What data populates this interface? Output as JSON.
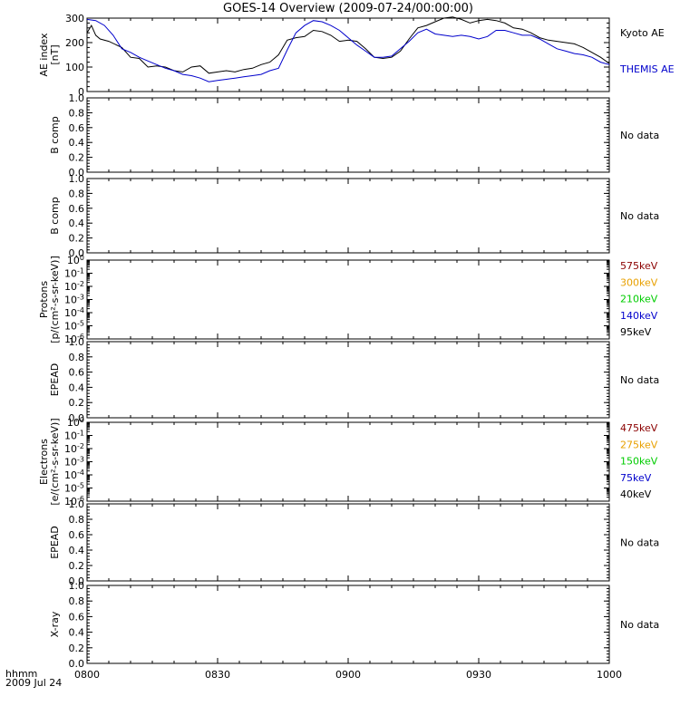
{
  "title": "GOES-14 Overview (2009-07-24/00:00:00)",
  "x_axis": {
    "label_line1": "hhmm",
    "label_line2": "2009 Jul 24",
    "ticks": [
      "0800",
      "0830",
      "0900",
      "0930",
      "1000"
    ]
  },
  "chart_data": [
    {
      "type": "line",
      "panel": "ae-index",
      "ylabel_line1": "AE index",
      "ylabel_line2": "[nT]",
      "ylim": [
        0,
        300
      ],
      "yticks": [
        "0",
        "100",
        "200",
        "300"
      ],
      "x_unit": "minutes after 08:00 UT",
      "series": [
        {
          "name": "Kyoto AE",
          "color": "#000000",
          "x": [
            0,
            1,
            2,
            3,
            5,
            8,
            10,
            12,
            14,
            16,
            18,
            20,
            22,
            24,
            26,
            28,
            30,
            32,
            34,
            36,
            38,
            40,
            42,
            44,
            46,
            48,
            50,
            52,
            54,
            56,
            58,
            60,
            62,
            64,
            66,
            68,
            70,
            72,
            74,
            76,
            78,
            80,
            82,
            84,
            86,
            88,
            90,
            92,
            94,
            96,
            98,
            100,
            102,
            104,
            106,
            108,
            110,
            112,
            114,
            116,
            118,
            120
          ],
          "values": [
            240,
            270,
            230,
            215,
            205,
            180,
            140,
            135,
            100,
            105,
            100,
            85,
            80,
            100,
            105,
            75,
            80,
            85,
            80,
            90,
            95,
            110,
            120,
            150,
            210,
            220,
            225,
            250,
            245,
            230,
            205,
            210,
            205,
            175,
            140,
            135,
            140,
            165,
            215,
            260,
            270,
            285,
            300,
            305,
            295,
            280,
            290,
            295,
            290,
            280,
            260,
            255,
            240,
            220,
            210,
            205,
            200,
            195,
            180,
            160,
            140,
            115
          ]
        },
        {
          "name": "THEMIS AE",
          "color": "#0000cc",
          "x": [
            0,
            2,
            4,
            6,
            8,
            10,
            12,
            14,
            16,
            18,
            20,
            22,
            24,
            26,
            28,
            30,
            32,
            34,
            36,
            38,
            40,
            42,
            44,
            46,
            48,
            50,
            52,
            54,
            56,
            58,
            60,
            62,
            64,
            66,
            68,
            70,
            72,
            74,
            76,
            78,
            80,
            82,
            84,
            86,
            88,
            90,
            92,
            94,
            96,
            98,
            100,
            102,
            104,
            106,
            108,
            110,
            112,
            114,
            116,
            118,
            120
          ],
          "values": [
            295,
            290,
            270,
            230,
            175,
            160,
            140,
            125,
            110,
            95,
            85,
            70,
            65,
            55,
            40,
            45,
            50,
            55,
            60,
            65,
            70,
            85,
            95,
            170,
            240,
            270,
            290,
            285,
            270,
            250,
            220,
            190,
            165,
            140,
            140,
            145,
            175,
            205,
            240,
            255,
            235,
            230,
            225,
            230,
            225,
            215,
            225,
            250,
            250,
            240,
            230,
            230,
            215,
            195,
            175,
            165,
            155,
            150,
            140,
            120,
            110
          ]
        }
      ],
      "legend": [
        "Kyoto AE",
        "THEMIS AE"
      ]
    },
    {
      "type": "line",
      "panel": "b-comp-1",
      "ylabel": "B comp",
      "ylim": [
        0.0,
        1.0
      ],
      "yticks": [
        "0.0",
        "0.2",
        "0.4",
        "0.6",
        "0.8",
        "1.0"
      ],
      "series": [],
      "note": "No data"
    },
    {
      "type": "line",
      "panel": "b-comp-2",
      "ylabel": "B comp",
      "ylim": [
        0.0,
        1.0
      ],
      "yticks": [
        "0.0",
        "0.2",
        "0.4",
        "0.6",
        "0.8",
        "1.0"
      ],
      "series": [],
      "note": "No data"
    },
    {
      "type": "line",
      "panel": "protons",
      "ylabel_line1": "Protons",
      "ylabel_line2": "[p/(cm²-s-sr-keV)]",
      "yscale": "log",
      "ylim": [
        1e-06,
        1
      ],
      "yticks_base": "10",
      "yticks_exp": [
        "0",
        "-1",
        "-2",
        "-3",
        "-4",
        "-5",
        "-6"
      ],
      "series": [],
      "legend": [
        {
          "label": "575keV",
          "color": "#8b0000"
        },
        {
          "label": "300keV",
          "color": "#e8a000"
        },
        {
          "label": "210keV",
          "color": "#00cc00"
        },
        {
          "label": "140keV",
          "color": "#0000cc"
        },
        {
          "label": "95keV",
          "color": "#000000"
        }
      ]
    },
    {
      "type": "line",
      "panel": "epead-1",
      "ylabel": "EPEAD",
      "ylim": [
        0.0,
        1.0
      ],
      "yticks": [
        "0.0",
        "0.2",
        "0.4",
        "0.6",
        "0.8",
        "1.0"
      ],
      "series": [],
      "note": "No data"
    },
    {
      "type": "line",
      "panel": "electrons",
      "ylabel_line1": "Electrons",
      "ylabel_line2": "[e/(cm²-s-sr-keV)]",
      "yscale": "log",
      "ylim": [
        1e-06,
        1
      ],
      "yticks_base": "10",
      "yticks_exp": [
        "0",
        "-1",
        "-2",
        "-3",
        "-4",
        "-5",
        "-6"
      ],
      "series": [],
      "legend": [
        {
          "label": "475keV",
          "color": "#8b0000"
        },
        {
          "label": "275keV",
          "color": "#e8a000"
        },
        {
          "label": "150keV",
          "color": "#00cc00"
        },
        {
          "label": "75keV",
          "color": "#0000cc"
        },
        {
          "label": "40keV",
          "color": "#000000"
        }
      ]
    },
    {
      "type": "line",
      "panel": "epead-2",
      "ylabel": "EPEAD",
      "ylim": [
        0.0,
        1.0
      ],
      "yticks": [
        "0.0",
        "0.2",
        "0.4",
        "0.6",
        "0.8",
        "1.0"
      ],
      "series": [],
      "note": "No data"
    },
    {
      "type": "line",
      "panel": "x-ray",
      "ylabel": "X-ray",
      "ylim": [
        0.0,
        1.0
      ],
      "yticks": [
        "0.0",
        "0.2",
        "0.4",
        "0.6",
        "0.8",
        "1.0"
      ],
      "series": [],
      "note": "No data"
    }
  ]
}
